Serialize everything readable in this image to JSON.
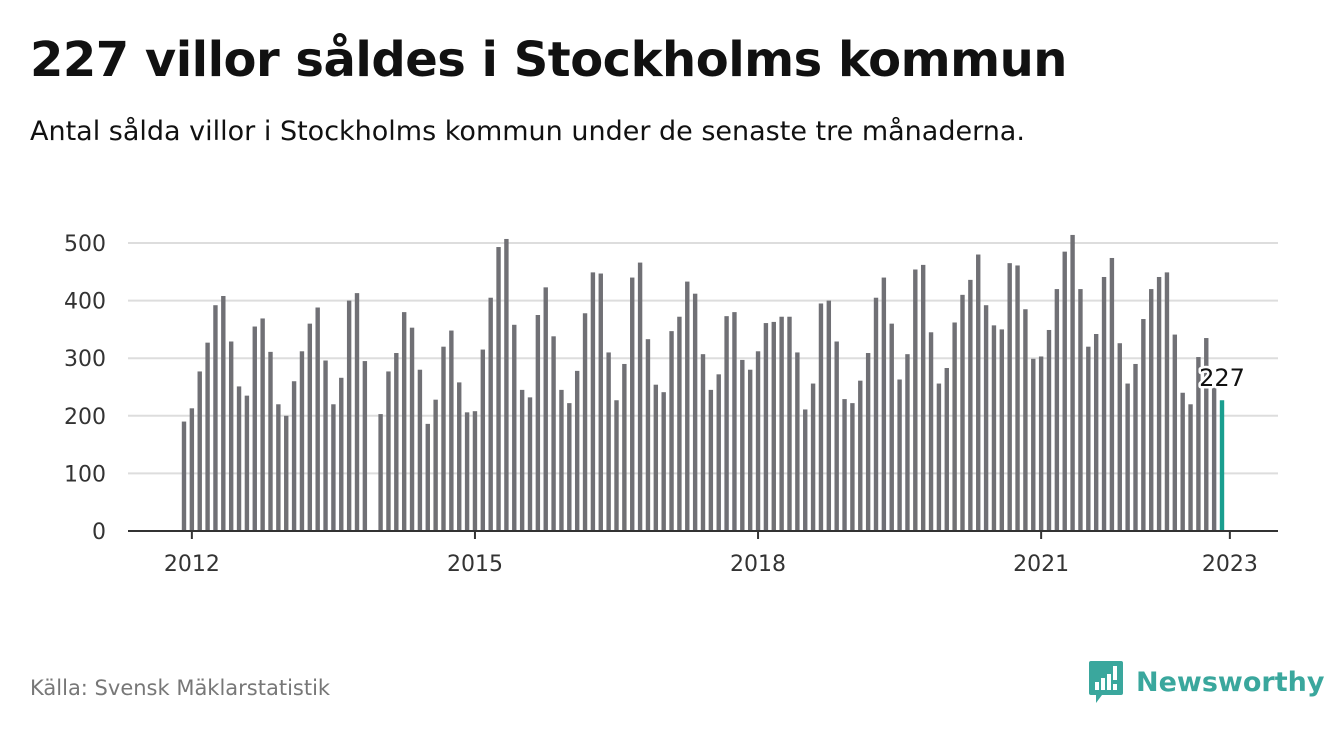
{
  "title": "227 villor såldes i Stockholms kommun",
  "subtitle": "Antal sålda villor i Stockholms kommun under de senaste tre månaderna.",
  "source": "Källa: Svensk Mäklarstatistik",
  "brand": {
    "name": "Newsworthy",
    "icon": "newsworthy-logo-icon",
    "color": "#3aa79d"
  },
  "colors": {
    "bar": "#707075",
    "highlight": "#1a9e8f",
    "grid": "#dddddd",
    "axis": "#333333"
  },
  "chart_data": {
    "type": "bar",
    "title": "227 villor såldes i Stockholms kommun",
    "subtitle": "Antal sålda villor i Stockholms kommun under de senaste tre månaderna.",
    "xlabel": "",
    "ylabel": "",
    "ylim": [
      0,
      500
    ],
    "yticks": [
      0,
      100,
      200,
      300,
      400,
      500
    ],
    "xticks": [
      "2012",
      "2015",
      "2018",
      "2021",
      "2023"
    ],
    "grid": true,
    "legend": "none",
    "x_start": "2011-12",
    "x_end": "2022-12",
    "highlight_label": "227",
    "values": [
      190,
      213,
      277,
      327,
      392,
      408,
      329,
      251,
      235,
      355,
      369,
      311,
      220,
      200,
      260,
      312,
      360,
      388,
      296,
      220,
      266,
      400,
      413,
      295,
      null,
      203,
      277,
      309,
      380,
      353,
      280,
      186,
      228,
      320,
      348,
      258,
      206,
      208,
      315,
      405,
      493,
      507,
      358,
      245,
      232,
      375,
      423,
      338,
      245,
      222,
      278,
      378,
      449,
      447,
      310,
      227,
      290,
      440,
      466,
      333,
      254,
      241,
      347,
      372,
      433,
      412,
      307,
      245,
      272,
      373,
      380,
      297,
      280,
      312,
      361,
      363,
      372,
      372,
      310,
      211,
      256,
      395,
      400,
      329,
      229,
      222,
      261,
      309,
      405,
      440,
      360,
      263,
      307,
      454,
      462,
      345,
      256,
      283,
      362,
      410,
      436,
      480,
      392,
      357,
      350,
      465,
      461,
      385,
      299,
      303,
      349,
      420,
      485,
      514,
      420,
      320,
      342,
      441,
      474,
      326,
      256,
      290,
      368,
      420,
      441,
      449,
      341,
      240,
      220,
      302,
      335,
      254,
      227
    ]
  }
}
